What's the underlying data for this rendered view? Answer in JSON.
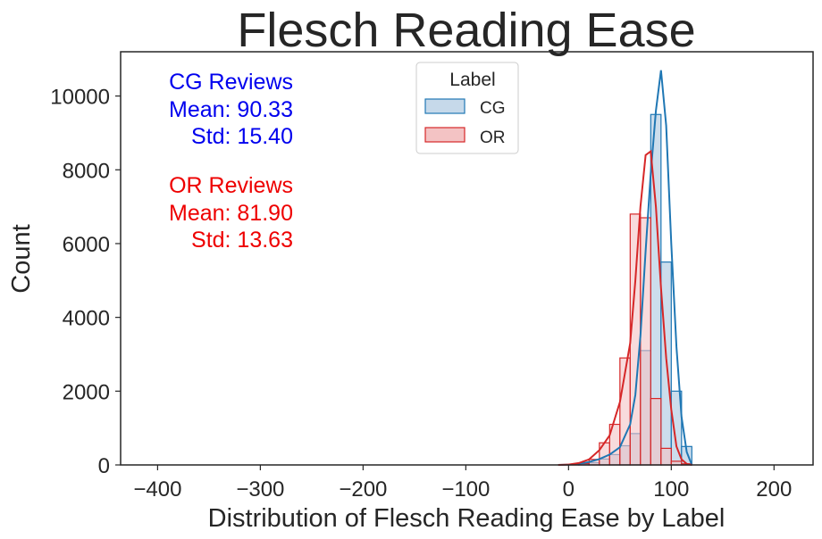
{
  "chart_data": {
    "type": "histogram",
    "title": "Flesch Reading Ease",
    "xlabel": "Distribution of Flesch Reading Ease by Label",
    "ylabel": "Count",
    "xlim": [
      -436,
      238
    ],
    "ylim": [
      0,
      11200
    ],
    "xticks": [
      -400,
      -300,
      -200,
      -100,
      0,
      100,
      200
    ],
    "xtick_labels": [
      "−400",
      "−300",
      "−200",
      "−100",
      "0",
      "100",
      "200"
    ],
    "yticks": [
      0,
      2000,
      4000,
      6000,
      8000,
      10000
    ],
    "ytick_labels": [
      "0",
      "2000",
      "4000",
      "6000",
      "8000",
      "10000"
    ],
    "grid": false,
    "legend": {
      "title": "Label",
      "placement": "upper-center"
    },
    "bin_edges": [
      -10,
      0,
      10,
      20,
      30,
      40,
      50,
      60,
      70,
      80,
      90,
      100,
      110,
      120
    ],
    "series": [
      {
        "name": "CG",
        "color": "#1f77b4",
        "fill": "#c6d9ea",
        "counts": [
          0,
          5,
          20,
          60,
          160,
          280,
          520,
          850,
          3100,
          9500,
          5500,
          2000,
          500
        ],
        "kde_x": [
          -10,
          0,
          10,
          20,
          30,
          40,
          50,
          60,
          65,
          70,
          75,
          80,
          85,
          90,
          95,
          100,
          105,
          110,
          115,
          120
        ],
        "kde_y": [
          0,
          5,
          30,
          80,
          160,
          280,
          480,
          1100,
          1900,
          3500,
          5800,
          7900,
          9600,
          10700,
          9200,
          6000,
          3200,
          1300,
          350,
          0
        ]
      },
      {
        "name": "OR",
        "color": "#d62728",
        "fill": "#f3c3c4",
        "counts": [
          0,
          5,
          40,
          150,
          600,
          1100,
          2900,
          6800,
          6700,
          1800,
          450,
          100,
          30
        ],
        "kde_x": [
          -10,
          0,
          10,
          20,
          30,
          40,
          50,
          60,
          65,
          70,
          75,
          80,
          85,
          90,
          95,
          100,
          105,
          110,
          115,
          120
        ],
        "kde_y": [
          0,
          10,
          50,
          150,
          400,
          800,
          1700,
          3300,
          5000,
          7000,
          8400,
          8500,
          7000,
          4800,
          2900,
          1500,
          500,
          150,
          30,
          0
        ]
      }
    ],
    "annotations": {
      "cg": [
        "CG Reviews",
        "Mean: 90.33",
        "Std: 15.40"
      ],
      "or": [
        "OR Reviews",
        "Mean: 81.90",
        "Std: 13.63"
      ]
    }
  }
}
